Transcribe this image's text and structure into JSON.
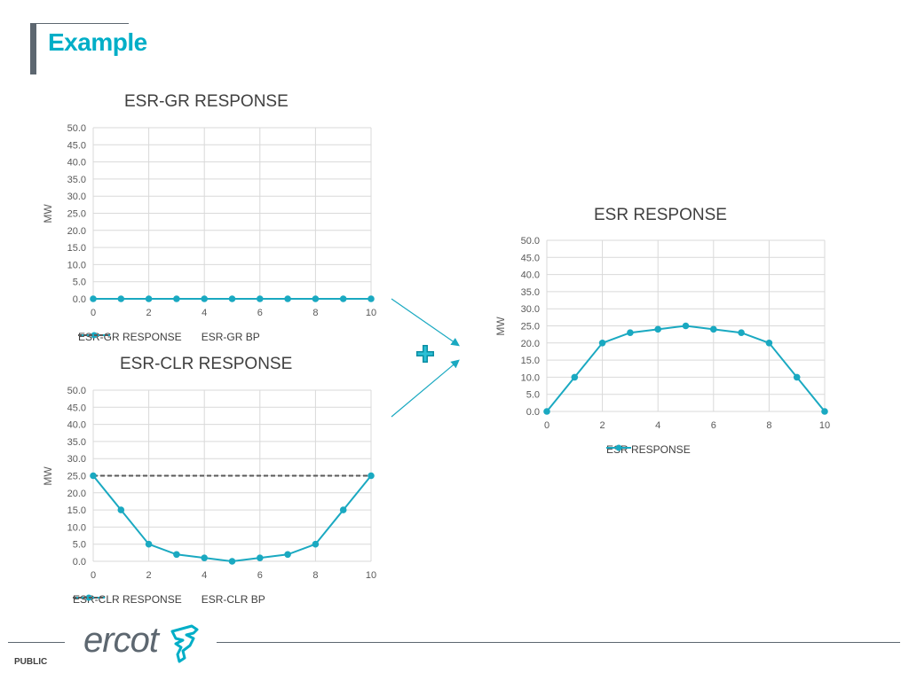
{
  "page": {
    "title": "Example",
    "footer_label": "PUBLIC",
    "logo_text": "ercot"
  },
  "colors": {
    "accent": "#00aec7",
    "series_line": "#1aa9c1",
    "baseline_dash": "#5a5a5a",
    "grid": "#d9d9d9",
    "brand_gray": "#5d6770"
  },
  "icons": {
    "plus": "plus-icon",
    "logo": "ercot-logo-icon"
  },
  "chart_data": [
    {
      "id": "gr",
      "type": "line",
      "title": "ESR-GR RESPONSE",
      "ylabel": "MW",
      "xlabel": "",
      "xlim": [
        0,
        10
      ],
      "ylim": [
        0,
        50
      ],
      "x_ticks": [
        "0",
        "2",
        "4",
        "6",
        "8",
        "10"
      ],
      "y_ticks": [
        "0.0",
        "5.0",
        "10.0",
        "15.0",
        "20.0",
        "25.0",
        "30.0",
        "35.0",
        "40.0",
        "45.0",
        "50.0"
      ],
      "grid": true,
      "legend_position": "bottom",
      "x": [
        0,
        1,
        2,
        3,
        4,
        5,
        6,
        7,
        8,
        9,
        10
      ],
      "series": [
        {
          "name": "ESR-GR RESPONSE",
          "style": "solid-marker",
          "values": [
            0,
            0,
            0,
            0,
            0,
            0,
            0,
            0,
            0,
            0,
            0
          ]
        },
        {
          "name": "ESR-GR BP",
          "style": "dashed",
          "values": [
            0,
            0,
            0,
            0,
            0,
            0,
            0,
            0,
            0,
            0,
            0
          ]
        }
      ]
    },
    {
      "id": "clr",
      "type": "line",
      "title": "ESR-CLR RESPONSE",
      "ylabel": "MW",
      "xlabel": "",
      "xlim": [
        0,
        10
      ],
      "ylim": [
        0,
        50
      ],
      "x_ticks": [
        "0",
        "2",
        "4",
        "6",
        "8",
        "10"
      ],
      "y_ticks": [
        "0.0",
        "5.0",
        "10.0",
        "15.0",
        "20.0",
        "25.0",
        "30.0",
        "35.0",
        "40.0",
        "45.0",
        "50.0"
      ],
      "grid": true,
      "legend_position": "bottom",
      "x": [
        0,
        1,
        2,
        3,
        4,
        5,
        6,
        7,
        8,
        9,
        10
      ],
      "series": [
        {
          "name": "ESR-CLR RESPONSE",
          "style": "solid-marker",
          "values": [
            25,
            15,
            5,
            2,
            1,
            0,
            1,
            2,
            5,
            15,
            25
          ]
        },
        {
          "name": "ESR-CLR BP",
          "style": "dashed",
          "values": [
            25,
            25,
            25,
            25,
            25,
            25,
            25,
            25,
            25,
            25,
            25
          ]
        }
      ]
    },
    {
      "id": "esr",
      "type": "line",
      "title": "ESR RESPONSE",
      "ylabel": "MW",
      "xlabel": "",
      "xlim": [
        0,
        10
      ],
      "ylim": [
        0,
        50
      ],
      "x_ticks": [
        "0",
        "2",
        "4",
        "6",
        "8",
        "10"
      ],
      "y_ticks": [
        "0.0",
        "5.0",
        "10.0",
        "15.0",
        "20.0",
        "25.0",
        "30.0",
        "35.0",
        "40.0",
        "45.0",
        "50.0"
      ],
      "grid": true,
      "legend_position": "bottom",
      "x": [
        0,
        1,
        2,
        3,
        4,
        5,
        6,
        7,
        8,
        9,
        10
      ],
      "series": [
        {
          "name": "ESR RESPONSE",
          "style": "solid-marker",
          "values": [
            0,
            10,
            20,
            23,
            24,
            25,
            24,
            23,
            20,
            10,
            0
          ]
        }
      ]
    }
  ]
}
